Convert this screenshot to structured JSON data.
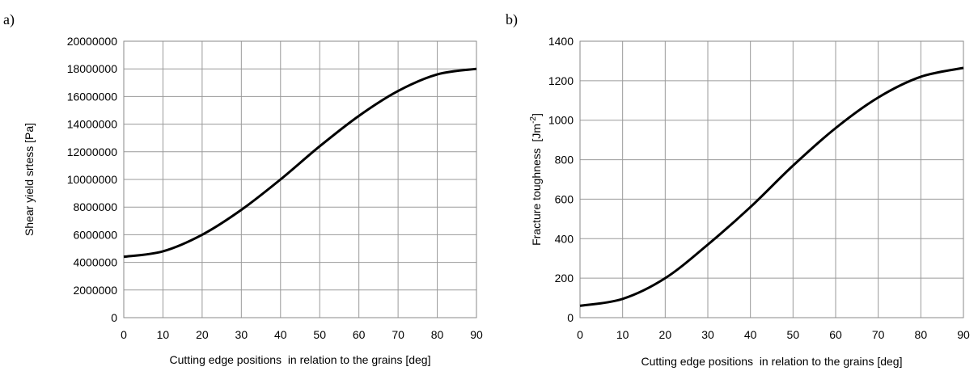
{
  "chart_data": [
    {
      "panel_label": "a)",
      "type": "line",
      "xlabel": "Cutting edge positions  in relation to the grains [deg]",
      "ylabel": "Shear yield srtess [Pa]",
      "xlim": [
        0,
        90
      ],
      "ylim": [
        0,
        20000000
      ],
      "xticks": [
        "0",
        "10",
        "20",
        "30",
        "40",
        "50",
        "60",
        "70",
        "80",
        "90"
      ],
      "yticks": [
        "0",
        "2000000",
        "4000000",
        "6000000",
        "8000000",
        "10000000",
        "12000000",
        "14000000",
        "16000000",
        "18000000",
        "20000000"
      ],
      "grid": true,
      "series": [
        {
          "color": "#000000",
          "x": [
            0,
            10,
            20,
            30,
            40,
            50,
            60,
            70,
            80,
            90
          ],
          "y": [
            4400000,
            4800000,
            6000000,
            7800000,
            10000000,
            12400000,
            14600000,
            16400000,
            17600000,
            18000000
          ]
        }
      ]
    },
    {
      "panel_label": "b)",
      "type": "line",
      "xlabel": "Cutting edge positions  in relation to the grains [deg]",
      "ylabel_main": "Fracture toughness  [Jm",
      "ylabel_sup": "-2",
      "ylabel_end": "]",
      "xlim": [
        0,
        90
      ],
      "ylim": [
        0,
        1400
      ],
      "xticks": [
        "0",
        "10",
        "20",
        "30",
        "40",
        "50",
        "60",
        "70",
        "80",
        "90"
      ],
      "yticks": [
        "0",
        "200",
        "400",
        "600",
        "800",
        "1000",
        "1200",
        "1400"
      ],
      "grid": true,
      "series": [
        {
          "color": "#000000",
          "x": [
            0,
            10,
            20,
            30,
            40,
            50,
            60,
            70,
            80,
            90
          ],
          "y": [
            60,
            95,
            200,
            370,
            560,
            770,
            960,
            1115,
            1220,
            1265
          ]
        }
      ]
    }
  ]
}
